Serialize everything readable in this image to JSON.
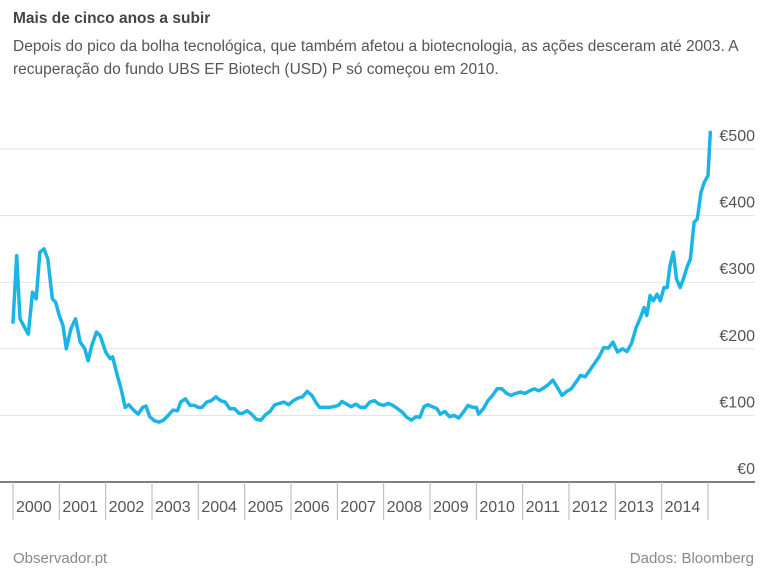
{
  "header": {
    "title": "Mais de cinco anos a subir",
    "subtitle": "Depois do pico da bolha tecnológica, que também afetou a biotecnologia, as ações desceram até 2003. A recuperação do fundo UBS EF Biotech (USD) P só começou em 2010."
  },
  "footer": {
    "source_left": "Observador.pt",
    "source_right": "Dados: Bloomberg"
  },
  "chart_data": {
    "type": "line",
    "title": "Mais de cinco anos a subir",
    "subtitle": "Depois do pico da bolha tecnológica, que também afetou a biotecnologia, as ações desceram até 2003. A recuperação do fundo UBS EF Biotech (USD) P só começou em 2010.",
    "xlabel": "",
    "ylabel": "",
    "x_tick_labels": [
      "2000",
      "2001",
      "2002",
      "2003",
      "2004",
      "2005",
      "2006",
      "2007",
      "2008",
      "2009",
      "2010",
      "2011",
      "2012",
      "2013",
      "2014"
    ],
    "y_tick_labels": [
      "€0",
      "€100",
      "€200",
      "€300",
      "€400",
      "€500"
    ],
    "y_ticks": [
      0,
      100,
      200,
      300,
      400,
      500
    ],
    "ylim": [
      0,
      500
    ],
    "xlim": [
      2000,
      2015
    ],
    "grid": true,
    "line_color": "#1ab4e6",
    "series": [
      {
        "values": [
          [
            2000.0,
            240
          ],
          [
            2000.08,
            340
          ],
          [
            2000.15,
            245
          ],
          [
            2000.25,
            232
          ],
          [
            2000.33,
            222
          ],
          [
            2000.42,
            285
          ],
          [
            2000.5,
            275
          ],
          [
            2000.58,
            345
          ],
          [
            2000.67,
            350
          ],
          [
            2000.75,
            335
          ],
          [
            2000.85,
            275
          ],
          [
            2000.92,
            270
          ],
          [
            2001.0,
            250
          ],
          [
            2001.08,
            235
          ],
          [
            2001.15,
            200
          ],
          [
            2001.25,
            230
          ],
          [
            2001.35,
            245
          ],
          [
            2001.45,
            210
          ],
          [
            2001.55,
            200
          ],
          [
            2001.62,
            182
          ],
          [
            2001.7,
            205
          ],
          [
            2001.8,
            225
          ],
          [
            2001.88,
            220
          ],
          [
            2002.0,
            195
          ],
          [
            2002.1,
            185
          ],
          [
            2002.15,
            188
          ],
          [
            2002.25,
            160
          ],
          [
            2002.35,
            135
          ],
          [
            2002.42,
            112
          ],
          [
            2002.5,
            116
          ],
          [
            2002.6,
            108
          ],
          [
            2002.7,
            102
          ],
          [
            2002.8,
            112
          ],
          [
            2002.87,
            114
          ],
          [
            2002.95,
            98
          ],
          [
            2003.05,
            92
          ],
          [
            2003.15,
            90
          ],
          [
            2003.25,
            93
          ],
          [
            2003.35,
            100
          ],
          [
            2003.45,
            108
          ],
          [
            2003.55,
            107
          ],
          [
            2003.62,
            120
          ],
          [
            2003.72,
            125
          ],
          [
            2003.82,
            115
          ],
          [
            2003.92,
            115
          ],
          [
            2004.0,
            112
          ],
          [
            2004.08,
            112
          ],
          [
            2004.18,
            120
          ],
          [
            2004.28,
            122
          ],
          [
            2004.38,
            128
          ],
          [
            2004.48,
            122
          ],
          [
            2004.58,
            120
          ],
          [
            2004.68,
            110
          ],
          [
            2004.78,
            110
          ],
          [
            2004.88,
            103
          ],
          [
            2004.95,
            103
          ],
          [
            2005.05,
            107
          ],
          [
            2005.15,
            102
          ],
          [
            2005.25,
            94
          ],
          [
            2005.35,
            93
          ],
          [
            2005.45,
            101
          ],
          [
            2005.55,
            106
          ],
          [
            2005.65,
            116
          ],
          [
            2005.75,
            118
          ],
          [
            2005.85,
            120
          ],
          [
            2005.95,
            116
          ],
          [
            2006.05,
            122
          ],
          [
            2006.15,
            126
          ],
          [
            2006.25,
            128
          ],
          [
            2006.35,
            136
          ],
          [
            2006.45,
            130
          ],
          [
            2006.55,
            118
          ],
          [
            2006.62,
            112
          ],
          [
            2006.72,
            112
          ],
          [
            2006.82,
            112
          ],
          [
            2006.92,
            113
          ],
          [
            2007.02,
            115
          ],
          [
            2007.1,
            121
          ],
          [
            2007.2,
            117
          ],
          [
            2007.3,
            113
          ],
          [
            2007.4,
            117
          ],
          [
            2007.5,
            112
          ],
          [
            2007.6,
            112
          ],
          [
            2007.7,
            120
          ],
          [
            2007.8,
            122
          ],
          [
            2007.9,
            117
          ],
          [
            2008.0,
            115
          ],
          [
            2008.1,
            118
          ],
          [
            2008.2,
            115
          ],
          [
            2008.3,
            110
          ],
          [
            2008.4,
            105
          ],
          [
            2008.5,
            97
          ],
          [
            2008.6,
            93
          ],
          [
            2008.7,
            98
          ],
          [
            2008.78,
            97
          ],
          [
            2008.87,
            113
          ],
          [
            2008.95,
            116
          ],
          [
            2009.05,
            113
          ],
          [
            2009.15,
            110
          ],
          [
            2009.22,
            102
          ],
          [
            2009.32,
            106
          ],
          [
            2009.42,
            98
          ],
          [
            2009.52,
            100
          ],
          [
            2009.62,
            96
          ],
          [
            2009.72,
            105
          ],
          [
            2009.82,
            115
          ],
          [
            2009.92,
            112
          ],
          [
            2010.0,
            112
          ],
          [
            2010.05,
            102
          ],
          [
            2010.15,
            110
          ],
          [
            2010.25,
            122
          ],
          [
            2010.35,
            130
          ],
          [
            2010.45,
            140
          ],
          [
            2010.55,
            140
          ],
          [
            2010.65,
            133
          ],
          [
            2010.75,
            130
          ],
          [
            2010.85,
            133
          ],
          [
            2010.95,
            135
          ],
          [
            2011.05,
            133
          ],
          [
            2011.15,
            137
          ],
          [
            2011.25,
            140
          ],
          [
            2011.35,
            137
          ],
          [
            2011.45,
            141
          ],
          [
            2011.55,
            146
          ],
          [
            2011.65,
            153
          ],
          [
            2011.75,
            142
          ],
          [
            2011.85,
            130
          ],
          [
            2011.95,
            136
          ],
          [
            2012.05,
            140
          ],
          [
            2012.15,
            150
          ],
          [
            2012.25,
            160
          ],
          [
            2012.35,
            158
          ],
          [
            2012.45,
            168
          ],
          [
            2012.55,
            178
          ],
          [
            2012.65,
            188
          ],
          [
            2012.75,
            202
          ],
          [
            2012.85,
            201
          ],
          [
            2012.95,
            210
          ],
          [
            2013.05,
            195
          ],
          [
            2013.15,
            200
          ],
          [
            2013.25,
            196
          ],
          [
            2013.35,
            208
          ],
          [
            2013.45,
            232
          ],
          [
            2013.55,
            248
          ],
          [
            2013.62,
            262
          ],
          [
            2013.68,
            250
          ],
          [
            2013.75,
            280
          ],
          [
            2013.82,
            272
          ],
          [
            2013.9,
            282
          ],
          [
            2013.97,
            272
          ],
          [
            2014.05,
            292
          ],
          [
            2014.12,
            292
          ],
          [
            2014.18,
            325
          ],
          [
            2014.25,
            345
          ],
          [
            2014.32,
            305
          ],
          [
            2014.4,
            292
          ],
          [
            2014.47,
            305
          ],
          [
            2014.55,
            323
          ],
          [
            2014.62,
            335
          ],
          [
            2014.7,
            390
          ],
          [
            2014.77,
            395
          ],
          [
            2014.85,
            435
          ],
          [
            2014.92,
            450
          ],
          [
            2015.0,
            460
          ],
          [
            2015.05,
            525
          ]
        ]
      }
    ]
  }
}
